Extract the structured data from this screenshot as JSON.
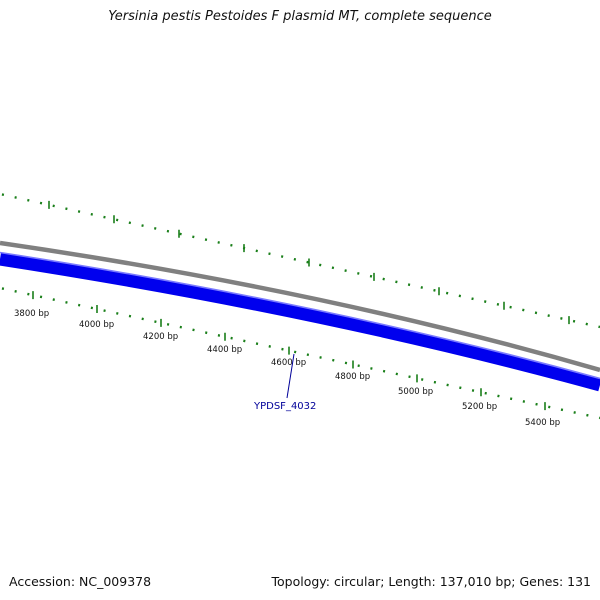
{
  "title": "Yersinia pestis Pestoides F plasmid MT, complete sequence",
  "accession": "Accession: NC_009378",
  "summary": "Topology: circular; Length: 137,010 bp; Genes: 131",
  "gene_label": "YPDSF_4032",
  "ruler_labels": [
    "3800 bp",
    "4000 bp",
    "4200 bp",
    "4400 bp",
    "4600 bp",
    "4800 bp",
    "5000 bp",
    "5200 bp",
    "5400 bp"
  ],
  "colors": {
    "tick": "#1a7f1a",
    "backbone": "#808080",
    "gene": "#0000ee",
    "gene_highlight": "#7a7aff",
    "label": "#000099",
    "text": "#111111"
  }
}
